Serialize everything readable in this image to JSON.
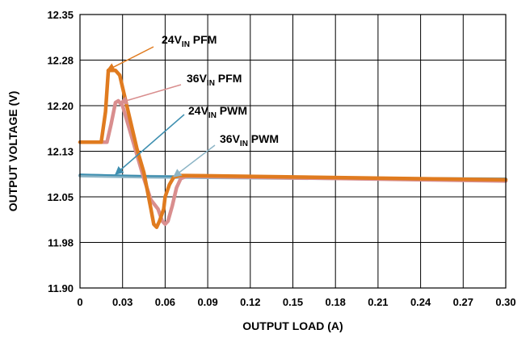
{
  "chart_data": {
    "type": "line",
    "xlabel": "OUTPUT LOAD (A)",
    "ylabel": "OUTPUT VOLTAGE (V)",
    "xlim": [
      0,
      0.3
    ],
    "ylim": [
      11.9,
      12.35
    ],
    "x_ticks": [
      "0",
      "0.03",
      "0.06",
      "0.09",
      "0.12",
      "0.15",
      "0.18",
      "0.21",
      "0.24",
      "0.27",
      "0.30"
    ],
    "y_ticks": [
      "12.35",
      "12.28",
      "12.20",
      "12.13",
      "12.05",
      "11.98",
      "11.90"
    ],
    "grid": true,
    "series": [
      {
        "name": "24V_IN PFM",
        "label_main": "24V",
        "label_sub": "IN",
        "label_suffix": " PFM",
        "color": "#E07B1F",
        "x": [
          0,
          0.015,
          0.018,
          0.02,
          0.025,
          0.028,
          0.03,
          0.035,
          0.04,
          0.045,
          0.05,
          0.052,
          0.054,
          0.056,
          0.059,
          0.06,
          0.063,
          0.066,
          0.07,
          0.075,
          0.3
        ],
        "y": [
          12.14,
          12.14,
          12.19,
          12.258,
          12.258,
          12.25,
          12.23,
          12.18,
          12.13,
          12.09,
          12.03,
          12.005,
          12.0,
          12.01,
          12.03,
          12.05,
          12.07,
          12.082,
          12.085,
          12.085,
          12.078
        ]
      },
      {
        "name": "36V_IN PFM",
        "label_main": "36V",
        "label_sub": "IN",
        "label_suffix": " PFM",
        "color": "#D98E8E",
        "x": [
          0,
          0.019,
          0.022,
          0.025,
          0.027,
          0.03,
          0.035,
          0.04,
          0.045,
          0.05,
          0.055,
          0.058,
          0.06,
          0.062,
          0.065,
          0.068,
          0.071,
          0.075,
          0.3
        ],
        "y": [
          12.14,
          12.14,
          12.17,
          12.205,
          12.208,
          12.2,
          12.16,
          12.12,
          12.08,
          12.045,
          12.03,
          12.01,
          12.005,
          12.01,
          12.035,
          12.065,
          12.08,
          12.084,
          12.076
        ]
      },
      {
        "name": "24V_IN PWM",
        "label_main": "24V",
        "label_sub": "IN",
        "label_suffix": " PWM",
        "color": "#3E8FB0",
        "x": [
          0,
          0.05,
          0.1,
          0.2,
          0.3
        ],
        "y": [
          12.087,
          12.084,
          12.083,
          12.081,
          12.08
        ]
      },
      {
        "name": "36V_IN PWM",
        "label_main": "36V",
        "label_sub": "IN",
        "label_suffix": " PWM",
        "color": "#8DB5C6",
        "x": [
          0,
          0.05,
          0.1,
          0.2,
          0.3
        ],
        "y": [
          12.085,
          12.083,
          12.082,
          12.08,
          12.079
        ]
      }
    ]
  }
}
